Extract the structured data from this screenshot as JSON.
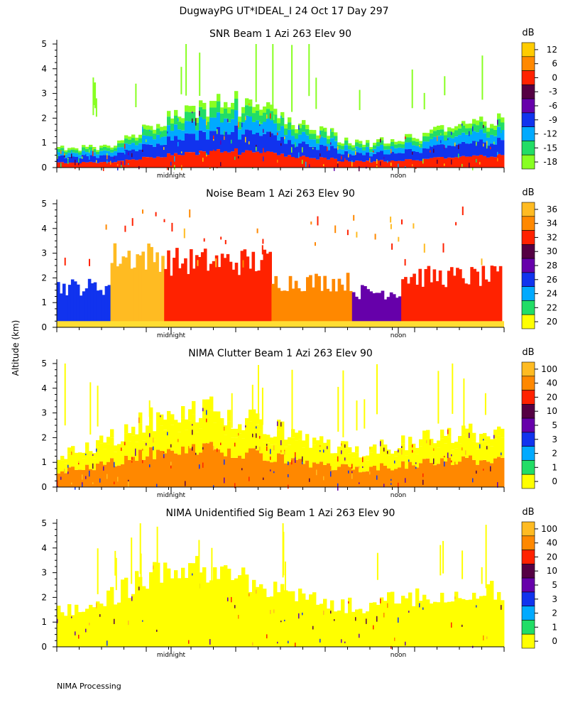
{
  "page": {
    "title": "DugwayPG UT*IDEAL_I  24 Oct 17 Day 297",
    "ylabel": "Altitude (km)",
    "footer": "NIMA Processing"
  },
  "chart_data": [
    {
      "type": "heatmap",
      "title": "SNR Beam 1 Azi 263 Elev 90",
      "ylabel": "Altitude (km)",
      "ylim": [
        0,
        5
      ],
      "yticks": [
        "0",
        "1",
        "2",
        "3",
        "4",
        "5"
      ],
      "xtick_labels": [
        "midnight",
        "noon"
      ],
      "colorbar": {
        "unit": "dB",
        "labels": [
          "12",
          "6",
          "0",
          "-3",
          "-6",
          "-9",
          "-12",
          "-15",
          "-18"
        ],
        "colors": [
          "#ffcc00",
          "#ff8800",
          "#ff2200",
          "#550044",
          "#6600aa",
          "#1133ee",
          "#00aaff",
          "#22dd66",
          "#88ff22"
        ]
      },
      "profile_km": [
        0.8,
        0.9,
        0.85,
        0.8,
        0.9,
        1.2,
        1.5,
        1.8,
        2.1,
        2.3,
        2.5,
        2.6,
        2.7,
        2.6,
        2.5,
        2.3,
        2.1,
        1.9,
        1.6,
        1.4,
        1.2,
        1.1,
        1.05,
        1.1,
        1.2,
        1.3,
        1.4,
        1.5,
        1.8,
        2.0,
        2.0,
        1.9
      ]
    },
    {
      "type": "heatmap",
      "title": "Noise Beam 1 Azi 263 Elev 90",
      "ylabel": "Altitude (km)",
      "ylim": [
        0,
        5
      ],
      "yticks": [
        "0",
        "1",
        "2",
        "3",
        "4",
        "5"
      ],
      "xtick_labels": [
        "midnight",
        "noon"
      ],
      "colorbar": {
        "unit": "dB",
        "labels": [
          "36",
          "34",
          "32",
          "30",
          "28",
          "26",
          "24",
          "22",
          "20"
        ],
        "colors": [
          "#ffbb22",
          "#ff8800",
          "#ff2200",
          "#550044",
          "#6600aa",
          "#1133ee",
          "#00aaff",
          "#22dd66",
          "#ffff00"
        ]
      },
      "segments": [
        {
          "from": 0.0,
          "to": 0.12,
          "top_km": 1.6,
          "color": "#1133ee"
        },
        {
          "from": 0.12,
          "to": 0.24,
          "top_km": 2.8,
          "color": "#ffbb22"
        },
        {
          "from": 0.24,
          "to": 0.48,
          "top_km": 2.6,
          "color": "#ff2200"
        },
        {
          "from": 0.48,
          "to": 0.66,
          "top_km": 1.8,
          "color": "#ff8800"
        },
        {
          "from": 0.66,
          "to": 0.77,
          "top_km": 1.4,
          "color": "#6600aa"
        },
        {
          "from": 0.77,
          "to": 0.995,
          "top_km": 2.0,
          "color": "#ff2200"
        }
      ]
    },
    {
      "type": "heatmap",
      "title": "NIMA Clutter Beam 1 Azi 263 Elev 90",
      "ylabel": "Altitude (km)",
      "ylim": [
        0,
        5
      ],
      "yticks": [
        "0",
        "1",
        "2",
        "3",
        "4",
        "5"
      ],
      "xtick_labels": [
        "midnight",
        "noon"
      ],
      "colorbar": {
        "unit": "dB",
        "labels": [
          "100",
          "40",
          "20",
          "10",
          "5",
          "3",
          "2",
          "1",
          "0"
        ],
        "colors": [
          "#ffbb22",
          "#ff8800",
          "#ff2200",
          "#550044",
          "#6600aa",
          "#1133ee",
          "#00aaff",
          "#22dd66",
          "#ffff00"
        ]
      },
      "profile_km": [
        1.4,
        1.5,
        1.6,
        1.8,
        2.1,
        2.4,
        2.7,
        2.9,
        3.0,
        3.1,
        3.2,
        3.1,
        3.0,
        2.9,
        2.7,
        2.5,
        2.3,
        2.1,
        1.9,
        1.7,
        1.6,
        1.5,
        1.6,
        1.7,
        1.8,
        1.9,
        2.0,
        2.1,
        2.2,
        2.3,
        2.2,
        2.1
      ]
    },
    {
      "type": "heatmap",
      "title": "NIMA Unidentified Sig Beam 1 Azi 263 Elev 90",
      "ylabel": "Altitude (km)",
      "ylim": [
        0,
        5
      ],
      "yticks": [
        "0",
        "1",
        "2",
        "3",
        "4",
        "5"
      ],
      "xtick_labels": [
        "midnight",
        "noon"
      ],
      "colorbar": {
        "unit": "dB",
        "labels": [
          "100",
          "40",
          "20",
          "10",
          "5",
          "3",
          "2",
          "1",
          "0"
        ],
        "colors": [
          "#ffbb22",
          "#ff8800",
          "#ff2200",
          "#550044",
          "#6600aa",
          "#1133ee",
          "#00aaff",
          "#22dd66",
          "#ffff00"
        ]
      },
      "profile_km": [
        1.5,
        1.6,
        1.7,
        1.9,
        2.2,
        2.5,
        2.8,
        3.0,
        3.1,
        3.2,
        3.3,
        3.2,
        3.1,
        2.9,
        2.7,
        2.5,
        2.3,
        2.1,
        1.9,
        1.8,
        1.7,
        1.7,
        1.8,
        1.9,
        2.0,
        2.1,
        2.2,
        2.3,
        2.3,
        2.4,
        2.3,
        2.2
      ]
    }
  ]
}
